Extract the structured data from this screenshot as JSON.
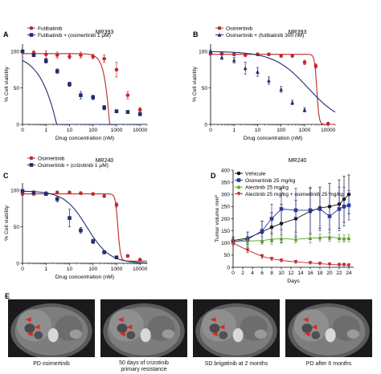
{
  "panel_letters": [
    "A",
    "B",
    "C",
    "D",
    "E"
  ],
  "ct_captions": [
    [
      "PD osimertinib"
    ],
    [
      "50 days of crizotinib",
      "primary resistance"
    ],
    [
      "SD brigatinib at 2 months"
    ],
    [
      "PD after 6 months"
    ]
  ],
  "chart_data": [
    {
      "panel": "A",
      "type": "scatter",
      "title": "MR393",
      "xlabel": "Drug concentration (nM)",
      "ylabel": "% Cell viability",
      "xscale": "log",
      "xlim": [
        0.1,
        20000
      ],
      "ylim": [
        0,
        110
      ],
      "xticks": [
        "0",
        "1",
        "10",
        "100",
        "1000",
        "10000"
      ],
      "yticks": [
        "0",
        "50",
        "100"
      ],
      "legend_position": "top-left",
      "series": [
        {
          "name": "Futibatinib",
          "color": "#c0282b",
          "marker": "circle",
          "x": [
            0.1,
            0.3,
            1,
            3,
            10,
            30,
            100,
            300,
            1000,
            3000,
            10000
          ],
          "y": [
            100,
            98,
            96,
            95,
            93,
            95,
            93,
            90,
            75,
            40,
            20
          ],
          "err": [
            2,
            3,
            5,
            4,
            3,
            4,
            3,
            5,
            10,
            5,
            3
          ],
          "fit": [
            97,
            -500,
            1000,
            2.4
          ]
        },
        {
          "name": "Futibatinib + (osimertinib 1 μM)",
          "color": "#1f2d6e",
          "marker": "square",
          "x": [
            0.1,
            0.3,
            1,
            3,
            10,
            30,
            100,
            300,
            1000,
            3000,
            10000
          ],
          "y": [
            100,
            95,
            87,
            73,
            55,
            40,
            37,
            23,
            18,
            17,
            14
          ],
          "err": [
            1,
            2,
            3,
            3,
            3,
            5,
            3,
            3,
            2,
            2,
            2
          ],
          "fit": [
            97,
            -450,
            22,
            0.75
          ]
        }
      ]
    },
    {
      "panel": "B",
      "type": "scatter",
      "title": "MR393",
      "xlabel": "Drug concentration (nM)",
      "ylabel": "% Cell viability",
      "xscale": "log",
      "xlim": [
        0.1,
        20000
      ],
      "ylim": [
        0,
        110
      ],
      "xticks": [
        "0",
        "1",
        "10",
        "100",
        "1000",
        "10000"
      ],
      "yticks": [
        "0",
        "50",
        "100"
      ],
      "legend_position": "top-left",
      "series": [
        {
          "name": "Osimertinib",
          "color": "#c0282b",
          "marker": "circle",
          "x": [
            0.1,
            0.3,
            1,
            3,
            10,
            30,
            100,
            300,
            1000,
            3000,
            10000
          ],
          "y": [
            97,
            97,
            96,
            95,
            96,
            96,
            94,
            94,
            85,
            80,
            1
          ],
          "err": [
            2,
            2,
            2,
            2,
            2,
            2,
            2,
            2,
            3,
            3,
            1
          ],
          "fit": [
            96,
            0,
            3300,
            9
          ]
        },
        {
          "name": "Osimertinib + (futibatinib 300 nM)",
          "color": "#1f2d6e",
          "marker": "triangle",
          "x": [
            0.1,
            0.3,
            1,
            3,
            10,
            30,
            100,
            300,
            1000
          ],
          "y": [
            100,
            92,
            88,
            77,
            72,
            60,
            48,
            30,
            20
          ],
          "err": [
            2,
            3,
            4,
            8,
            6,
            5,
            4,
            3,
            3
          ],
          "fit": [
            100,
            0,
            1400,
            0.6
          ]
        }
      ]
    },
    {
      "panel": "C",
      "type": "scatter",
      "title": "MR240",
      "xlabel": "Drug concentration (nM)",
      "ylabel": "% Cell viability",
      "xscale": "log",
      "xlim": [
        0.1,
        20000
      ],
      "ylim": [
        0,
        110
      ],
      "xticks": [
        "0",
        "1",
        "10",
        "100",
        "1000",
        "10000"
      ],
      "yticks": [
        "0",
        "50",
        "100"
      ],
      "legend_position": "top-left",
      "series": [
        {
          "name": "Osimertinib",
          "color": "#c0282b",
          "marker": "circle",
          "x": [
            0.1,
            0.3,
            1,
            3,
            10,
            30,
            100,
            300,
            1000,
            3000,
            10000
          ],
          "y": [
            95,
            95,
            96,
            97,
            97,
            96,
            95,
            92,
            80,
            10,
            5
          ],
          "err": [
            2,
            2,
            2,
            2,
            2,
            2,
            2,
            2,
            3,
            2,
            1
          ],
          "fit": [
            95,
            3,
            1150,
            8
          ]
        },
        {
          "name": "Osimertinib + (crizotinib 1 μM)",
          "color": "#1f2d6e",
          "marker": "square",
          "x": [
            0.1,
            0.3,
            1,
            3,
            10,
            30,
            100,
            300,
            1000
          ],
          "y": [
            99,
            97,
            95,
            88,
            62,
            45,
            30,
            15,
            8
          ],
          "err": [
            1,
            2,
            2,
            4,
            12,
            4,
            3,
            2,
            2
          ],
          "fit": [
            99,
            0,
            55,
            0.9
          ]
        }
      ]
    },
    {
      "panel": "D",
      "type": "line",
      "title": "MR240",
      "xlabel": "Days",
      "ylabel": "Tumor volume mm³",
      "xlim": [
        0,
        25
      ],
      "ylim": [
        0,
        400
      ],
      "xticks": [
        "0",
        "2",
        "4",
        "6",
        "8",
        "10",
        "12",
        "14",
        "16",
        "18",
        "20",
        "22",
        "24"
      ],
      "yticks": [
        "0",
        "50",
        "100",
        "150",
        "200",
        "250",
        "300",
        "350",
        "400"
      ],
      "legend_position": "top-left",
      "x": [
        0,
        3,
        6,
        8,
        10,
        13,
        16,
        18,
        20,
        22,
        23,
        24
      ],
      "series": [
        {
          "name": "Véhicule",
          "color": "#111111",
          "marker": "circle",
          "y": [
            110,
            120,
            145,
            165,
            180,
            200,
            230,
            245,
            250,
            260,
            280,
            300
          ],
          "err": [
            15,
            25,
            45,
            60,
            80,
            75,
            95,
            85,
            95,
            100,
            95,
            80
          ]
        },
        {
          "name": "Osimertinib 25 mg/kg",
          "color": "#2a3a9a",
          "marker": "square",
          "y": [
            105,
            115,
            150,
            200,
            240,
            235,
            235,
            240,
            210,
            240,
            250,
            255
          ],
          "err": [
            15,
            30,
            40,
            60,
            85,
            90,
            95,
            90,
            95,
            90,
            80,
            60
          ]
        },
        {
          "name": "Alectinib 25 mg/kg",
          "color": "#5a9a2e",
          "marker": "triangle",
          "y": [
            105,
            108,
            110,
            115,
            118,
            115,
            120,
            122,
            125,
            120,
            118,
            120
          ],
          "err": [
            10,
            15,
            15,
            20,
            15,
            15,
            20,
            15,
            18,
            15,
            15,
            15
          ]
        },
        {
          "name": "Alectinib 25 mg/kg + osimertinib 25 mg/kg",
          "color": "#c0282b",
          "marker": "triangle-down",
          "y": [
            100,
            70,
            45,
            35,
            28,
            22,
            18,
            15,
            12,
            10,
            10,
            8
          ],
          "err": [
            10,
            10,
            8,
            6,
            5,
            5,
            4,
            4,
            3,
            3,
            3,
            3
          ]
        }
      ]
    }
  ]
}
